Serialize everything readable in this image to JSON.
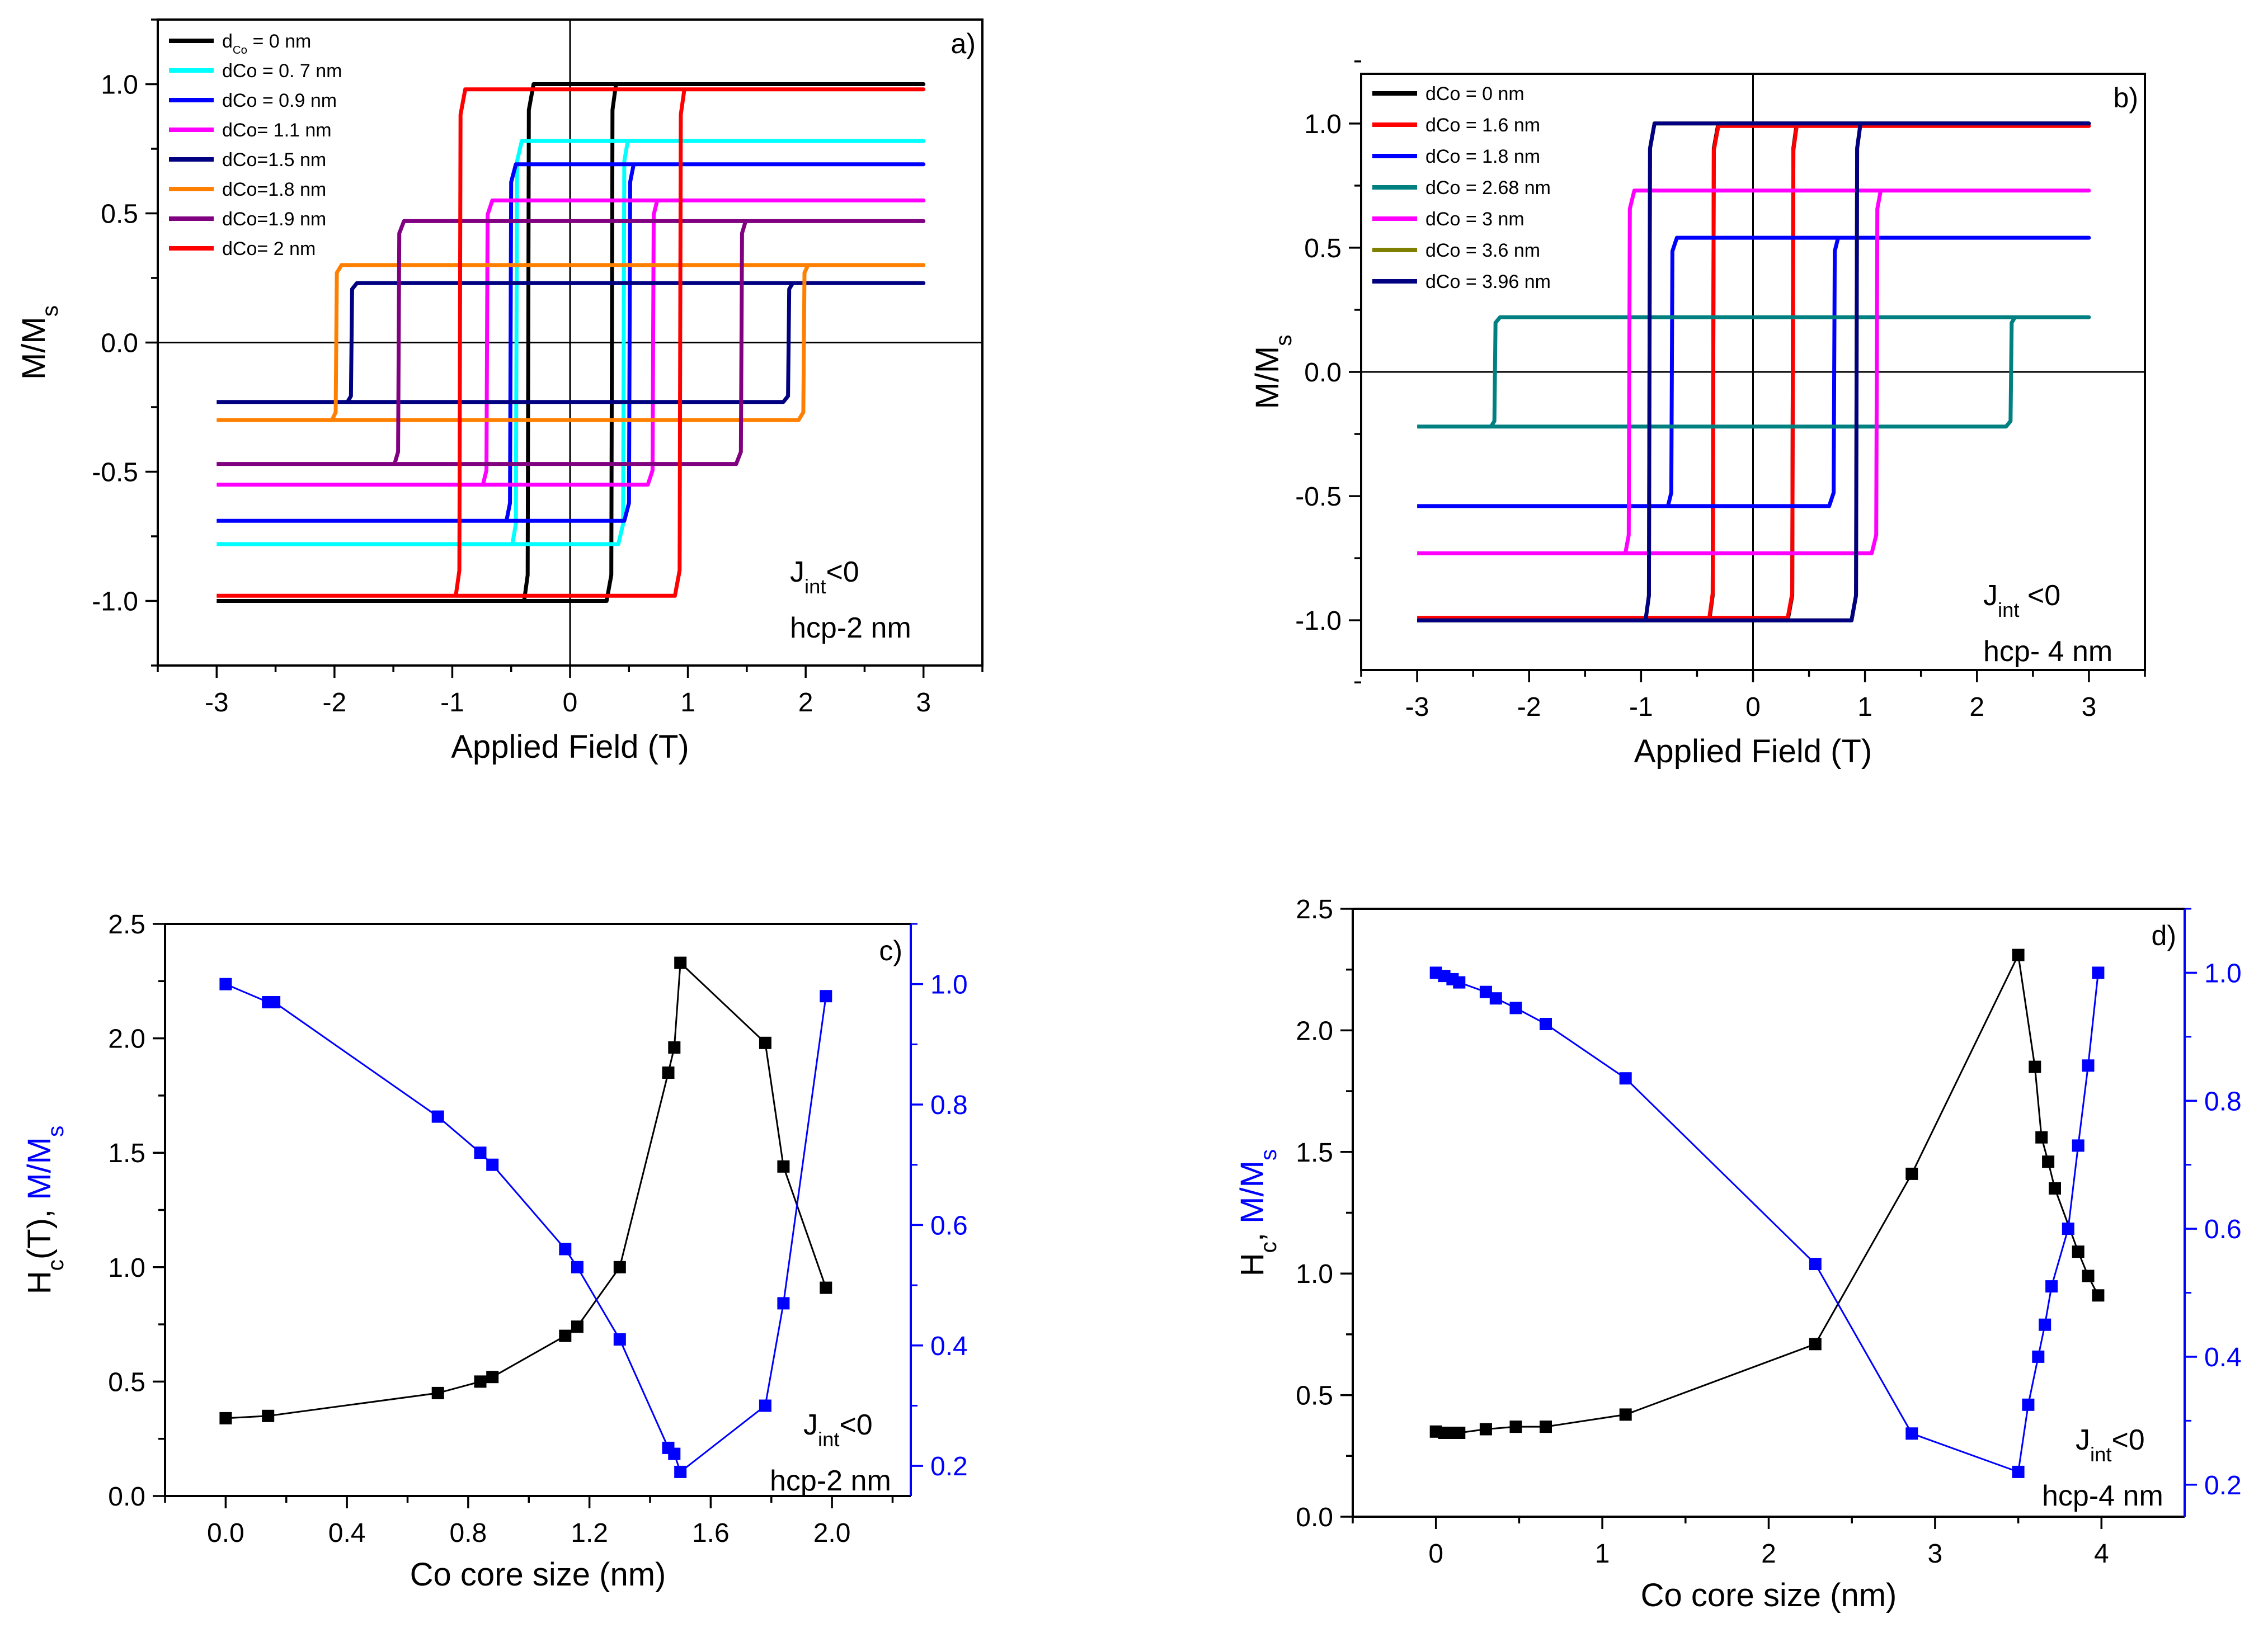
{
  "chart_data": [
    {
      "panel": "a)",
      "type": "line",
      "title": "",
      "xlabel": "Applied Field (T)",
      "ylabel": "M/Ms",
      "xlim": [
        -3.5,
        3.5
      ],
      "ylim": [
        -1.25,
        1.25
      ],
      "xticks": [
        -3,
        -2,
        -1,
        0,
        1,
        2,
        3
      ],
      "xtick_labels": [
        "-3",
        "-2",
        "-1",
        "0",
        "1",
        "2",
        "3"
      ],
      "yticks": [
        -1.0,
        -0.5,
        0.0,
        0.5,
        1.0
      ],
      "ytick_labels": [
        "-1.0",
        "-0.5",
        "0.0",
        "0.5",
        "1.0"
      ],
      "legend_position": "top-left",
      "annotations": [
        "J_int<0",
        "hcp-2 nm"
      ],
      "series": [
        {
          "name": "dCo = 0 nm",
          "color": "#000000",
          "coercive_field": 0.35,
          "saturation": 1.0
        },
        {
          "name": "dCo = 0. 7 nm",
          "color": "#00ffff",
          "coercive_field": 0.45,
          "saturation": 0.78
        },
        {
          "name": "dCo = 0.9 nm",
          "color": "#0000ff",
          "coercive_field": 0.5,
          "saturation": 0.69
        },
        {
          "name": "dCo= 1.1 nm",
          "color": "#ff00ff",
          "coercive_field": 0.7,
          "saturation": 0.55
        },
        {
          "name": "dCo=1.5 nm",
          "color": "#000080",
          "coercive_field": 1.85,
          "saturation": 0.23
        },
        {
          "name": "dCo=1.8 nm",
          "color": "#ff8000",
          "coercive_field": 1.98,
          "saturation": 0.3
        },
        {
          "name": "dCo=1.9 nm",
          "color": "#800080",
          "coercive_field": 1.45,
          "saturation": 0.47
        },
        {
          "name": "dCo= 2 nm",
          "color": "#ff0000",
          "coercive_field": 0.93,
          "saturation": 0.98
        }
      ]
    },
    {
      "panel": "b)",
      "type": "line",
      "title": "",
      "xlabel": "Applied Field (T)",
      "ylabel": "M/Ms",
      "xlim": [
        -3.5,
        3.5
      ],
      "ylim": [
        -1.2,
        1.2
      ],
      "xticks": [
        -3,
        -2,
        -1,
        0,
        1,
        2,
        3
      ],
      "xtick_labels": [
        "-3",
        "-2",
        "-1",
        "0",
        "1",
        "2",
        "3"
      ],
      "yticks": [
        -1.0,
        -0.5,
        0.0,
        0.5,
        1.0
      ],
      "ytick_labels": [
        "-1.0",
        "-0.5",
        "0.0",
        "0.5",
        "1.0"
      ],
      "legend_position": "top-left",
      "annotations": [
        "J_int <0",
        "hcp- 4 nm"
      ],
      "series": [
        {
          "name": "dCo = 0 nm",
          "color": "#000000",
          "coercive_field": 0.35,
          "saturation": 1.0
        },
        {
          "name": "dCo = 1.6 nm",
          "color": "#ff0000",
          "coercive_field": 0.35,
          "saturation": 0.99
        },
        {
          "name": "dCo = 1.8 nm",
          "color": "#0000ff",
          "coercive_field": 0.72,
          "saturation": 0.54
        },
        {
          "name": "dCo = 2.68 nm",
          "color": "#008080",
          "coercive_field": 2.3,
          "saturation": 0.22
        },
        {
          "name": "dCo = 3 nm",
          "color": "#ff00ff",
          "coercive_field": 1.1,
          "saturation": 0.73
        },
        {
          "name": "dCo = 3.6 nm",
          "color": "#808000",
          "coercive_field": 0.92,
          "saturation": 1.0
        },
        {
          "name": "dCo = 3.96 nm",
          "color": "#000080",
          "coercive_field": 0.92,
          "saturation": 1.0
        }
      ]
    },
    {
      "panel": "c)",
      "type": "scatter",
      "xlabel": "Co core size (nm)",
      "ylabel": "Hc(T), M/Ms",
      "xlim": [
        -0.2,
        2.26
      ],
      "ylim": [
        0,
        2.5
      ],
      "y2lim": [
        0.15,
        1.1
      ],
      "xticks": [
        0,
        0.4,
        0.8,
        1.2,
        1.6,
        2.0
      ],
      "xtick_labels": [
        "0.0",
        "0.4",
        "0.8",
        "1.2",
        "1.6",
        "2.0"
      ],
      "yticks": [
        0,
        0.5,
        1.0,
        1.5,
        2.0,
        2.5
      ],
      "ytick_labels": [
        "0.0",
        "0.5",
        "1.0",
        "1.5",
        "2.0",
        "2.5"
      ],
      "y2ticks": [
        0.2,
        0.4,
        0.6,
        0.8,
        1.0
      ],
      "y2tick_labels": [
        "0.2",
        "0.4",
        "0.6",
        "0.8",
        "1.0"
      ],
      "annotations": [
        "J_int<0",
        "hcp-2 nm"
      ],
      "series": [
        {
          "name": "Hc",
          "axis": "left",
          "color": "#000000",
          "x": [
            0,
            0.14,
            0.7,
            0.84,
            0.88,
            1.12,
            1.16,
            1.3,
            1.46,
            1.48,
            1.5,
            1.78,
            1.84,
            1.98
          ],
          "y": [
            0.34,
            0.35,
            0.45,
            0.5,
            0.52,
            0.7,
            0.74,
            1.0,
            1.85,
            1.96,
            2.33,
            1.98,
            1.44,
            0.91
          ]
        },
        {
          "name": "M/Ms",
          "axis": "right",
          "color": "#0000ff",
          "x": [
            0,
            0.14,
            0.16,
            0.7,
            0.84,
            0.88,
            1.12,
            1.16,
            1.3,
            1.46,
            1.48,
            1.5,
            1.78,
            1.84,
            1.98
          ],
          "y": [
            1.0,
            0.97,
            0.97,
            0.78,
            0.72,
            0.7,
            0.56,
            0.53,
            0.41,
            0.23,
            0.22,
            0.19,
            0.3,
            0.47,
            0.98
          ]
        }
      ]
    },
    {
      "panel": "d)",
      "type": "scatter",
      "xlabel": "Co core size (nm)",
      "ylabel": "Hc, M/Ms",
      "xlim": [
        -0.5,
        4.5
      ],
      "ylim": [
        0,
        2.5
      ],
      "y2lim": [
        0.15,
        1.1
      ],
      "xticks": [
        0,
        1,
        2,
        3,
        4
      ],
      "xtick_labels": [
        "0",
        "1",
        "2",
        "3",
        "4"
      ],
      "yticks": [
        0,
        0.5,
        1.0,
        1.5,
        2.0,
        2.5
      ],
      "ytick_labels": [
        "0.0",
        "0.5",
        "1.0",
        "1.5",
        "2.0",
        "2.5"
      ],
      "y2ticks": [
        0.2,
        0.4,
        0.6,
        0.8,
        1.0
      ],
      "y2tick_labels": [
        "0.2",
        "0.4",
        "0.6",
        "0.8",
        "1.0"
      ],
      "annotations": [
        "J_int<0",
        "hcp-4 nm"
      ],
      "series": [
        {
          "name": "Hc",
          "axis": "left",
          "color": "#000000",
          "x": [
            0,
            0.05,
            0.1,
            0.14,
            0.3,
            0.48,
            0.66,
            1.14,
            2.28,
            2.86,
            3.5,
            3.6,
            3.64,
            3.68,
            3.72,
            3.86,
            3.92,
            3.98
          ],
          "y": [
            0.35,
            0.345,
            0.345,
            0.345,
            0.36,
            0.37,
            0.37,
            0.42,
            0.71,
            1.41,
            2.31,
            1.85,
            1.56,
            1.46,
            1.35,
            1.09,
            0.99,
            0.91
          ]
        },
        {
          "name": "M/Ms",
          "axis": "right",
          "color": "#0000ff",
          "x": [
            0,
            0.05,
            0.1,
            0.14,
            0.3,
            0.36,
            0.48,
            0.66,
            1.14,
            2.28,
            2.86,
            3.5,
            3.56,
            3.62,
            3.66,
            3.7,
            3.8,
            3.86,
            3.92,
            3.98
          ],
          "y": [
            1.0,
            0.995,
            0.99,
            0.985,
            0.97,
            0.96,
            0.945,
            0.92,
            0.835,
            0.545,
            0.28,
            0.22,
            0.325,
            0.4,
            0.45,
            0.51,
            0.6,
            0.73,
            0.855,
            1.0
          ]
        }
      ]
    }
  ],
  "labels": {
    "a_panel": "a)",
    "b_panel": "b)",
    "c_panel": "c)",
    "d_panel": "d)",
    "a_xlabel": "Applied Field (T)",
    "b_xlabel": "Applied Field (T)",
    "c_xlabel": "Co core size (nm)",
    "d_xlabel": "Co core size (nm)",
    "ms_main": "M/M",
    "ms_sub": "s",
    "c_ylabel_h": "H",
    "c_ylabel_hsub": "c",
    "c_ylabel_unit": "(T), ",
    "d_ylabel_unit": ", ",
    "c_ylabel_m": "M/M",
    "d_first_legend_pre": "d",
    "d_first_legend_sub": "Co",
    "d_first_legend_post": " = 0 nm",
    "jint_j": "J",
    "jint_sub": "int",
    "jint_rel": "<0",
    "jint_rel_spaced": " <0",
    "a_note": "hcp-2 nm",
    "b_note": "hcp- 4 nm",
    "c_note": "hcp-2 nm",
    "d_note": "hcp-4 nm"
  }
}
